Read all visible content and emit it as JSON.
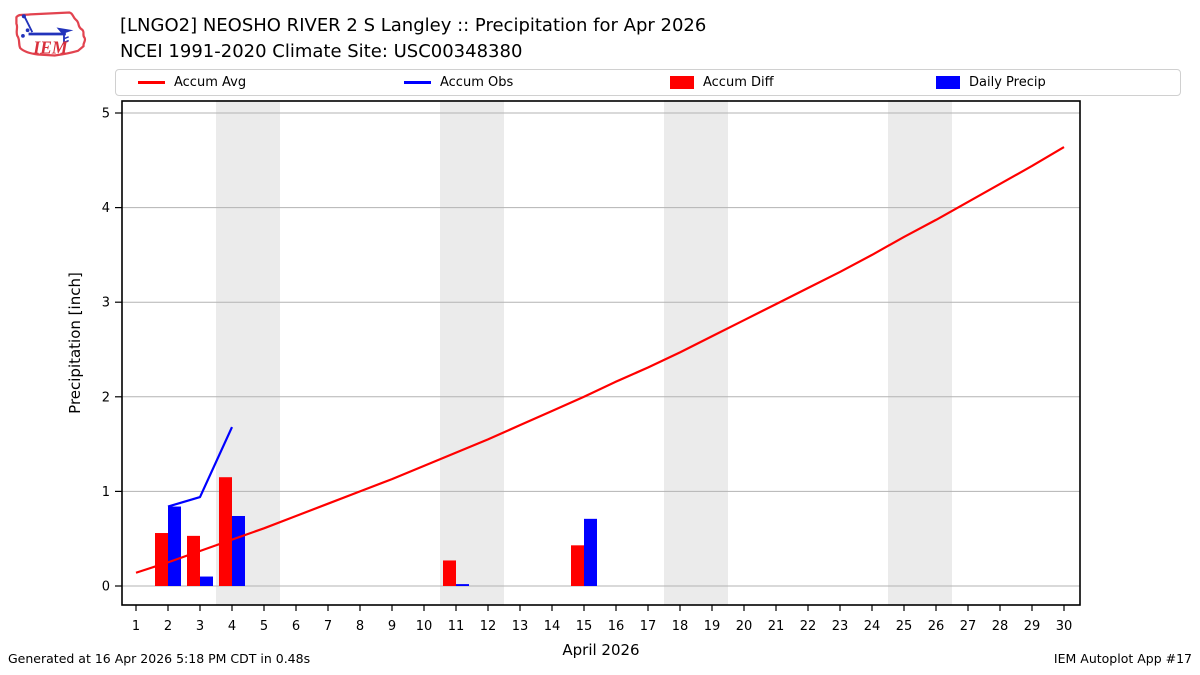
{
  "header": {
    "title": "[LNGO2] NEOSHO RIVER 2 S Langley :: Precipitation for Apr 2026",
    "subtitle": "NCEI 1991-2020 Climate Site: USC00348380",
    "logo_text": "IEM"
  },
  "legend": {
    "items": [
      {
        "label": "Accum Avg",
        "swatch": "line",
        "color": "#ff0000"
      },
      {
        "label": "Accum Obs",
        "swatch": "line",
        "color": "#0000ff"
      },
      {
        "label": "Accum Diff",
        "swatch": "patch",
        "color": "#ff0000"
      },
      {
        "label": "Daily Precip",
        "swatch": "patch",
        "color": "#0000ff"
      }
    ]
  },
  "chart_data": {
    "type": "line+bar",
    "title": "[LNGO2] NEOSHO RIVER 2 S Langley :: Precipitation for Apr 2026",
    "subtitle": "NCEI 1991-2020 Climate Site: USC00348380",
    "xlabel": "April 2026",
    "ylabel": "Precipitation [inch]",
    "x_ticks": [
      1,
      2,
      3,
      4,
      5,
      6,
      7,
      8,
      9,
      10,
      11,
      12,
      13,
      14,
      15,
      16,
      17,
      18,
      19,
      20,
      21,
      22,
      23,
      24,
      25,
      26,
      27,
      28,
      29,
      30
    ],
    "y_ticks": [
      0,
      1,
      2,
      3,
      4,
      5
    ],
    "ylim": [
      -0.21,
      5.13
    ],
    "grid": "horizontal",
    "legend_position": "top",
    "band_color": "#ebebeb",
    "grid_color": "#b3b3b3",
    "weekend_bands": [
      [
        3.5,
        5.5
      ],
      [
        10.5,
        12.5
      ],
      [
        17.5,
        19.5
      ],
      [
        24.5,
        26.5
      ]
    ],
    "series": [
      {
        "name": "Accum Avg",
        "type": "line",
        "color": "#ff0000",
        "x": [
          1,
          2,
          3,
          4,
          5,
          6,
          7,
          8,
          9,
          10,
          11,
          12,
          13,
          14,
          15,
          16,
          17,
          18,
          19,
          20,
          21,
          22,
          23,
          24,
          25,
          26,
          27,
          28,
          29,
          30
        ],
        "values": [
          0.14,
          0.25,
          0.37,
          0.49,
          0.61,
          0.74,
          0.87,
          1.0,
          1.13,
          1.27,
          1.41,
          1.55,
          1.7,
          1.85,
          2.0,
          2.16,
          2.31,
          2.47,
          2.64,
          2.81,
          2.98,
          3.15,
          3.32,
          3.5,
          3.69,
          3.87,
          4.06,
          4.25,
          4.44,
          4.64
        ]
      },
      {
        "name": "Accum Obs",
        "type": "line",
        "color": "#0000ff",
        "x": [
          2,
          3,
          4
        ],
        "values": [
          0.84,
          0.94,
          1.68
        ]
      },
      {
        "name": "Accum Diff",
        "type": "bar",
        "color": "#ff0000",
        "x": [
          2,
          3,
          4,
          11,
          15
        ],
        "values": [
          0.56,
          0.53,
          1.15,
          0.27,
          0.43
        ]
      },
      {
        "name": "Daily Precip",
        "type": "bar",
        "color": "#0000ff",
        "x": [
          2,
          3,
          4,
          11,
          15
        ],
        "values": [
          0.84,
          0.1,
          0.74,
          0.02,
          0.71
        ]
      }
    ]
  },
  "footer": {
    "left": "Generated at 16 Apr 2026 5:18 PM CDT in 0.48s",
    "right": "IEM Autoplot App #17"
  }
}
